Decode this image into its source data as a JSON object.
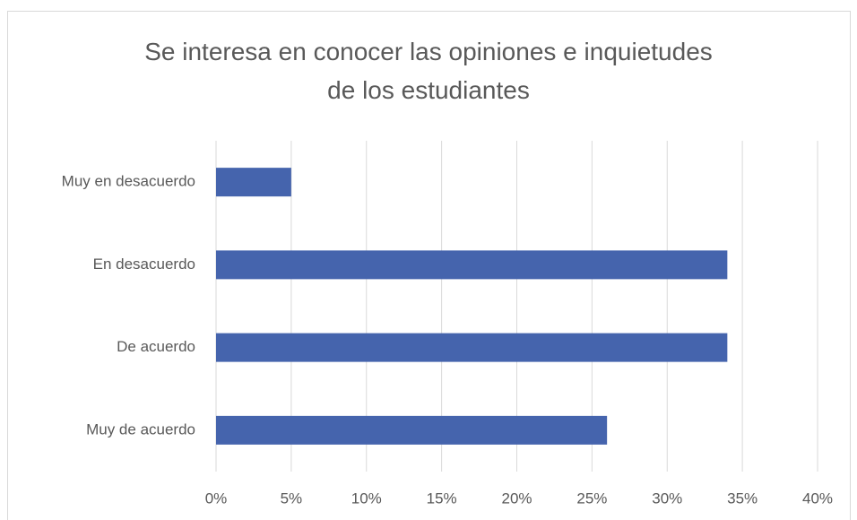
{
  "chart_data": {
    "type": "barh",
    "title": "Se interesa en conocer las opiniones e inquietudes de los estudiantes",
    "categories": [
      "Muy en desacuerdo",
      "En desacuerdo",
      "De acuerdo",
      "Muy de acuerdo"
    ],
    "values": [
      5,
      34,
      34,
      26
    ],
    "color": "#4564ad",
    "xlim": [
      0,
      40
    ],
    "xticks": [
      {
        "value": 0,
        "label": "0%"
      },
      {
        "value": 5,
        "label": "5%"
      },
      {
        "value": 10,
        "label": "10%"
      },
      {
        "value": 15,
        "label": "15%"
      },
      {
        "value": 20,
        "label": "20%"
      },
      {
        "value": 25,
        "label": "25%"
      },
      {
        "value": 30,
        "label": "30%"
      },
      {
        "value": 35,
        "label": "35%"
      },
      {
        "value": 40,
        "label": "40%"
      }
    ],
    "grid": true
  }
}
